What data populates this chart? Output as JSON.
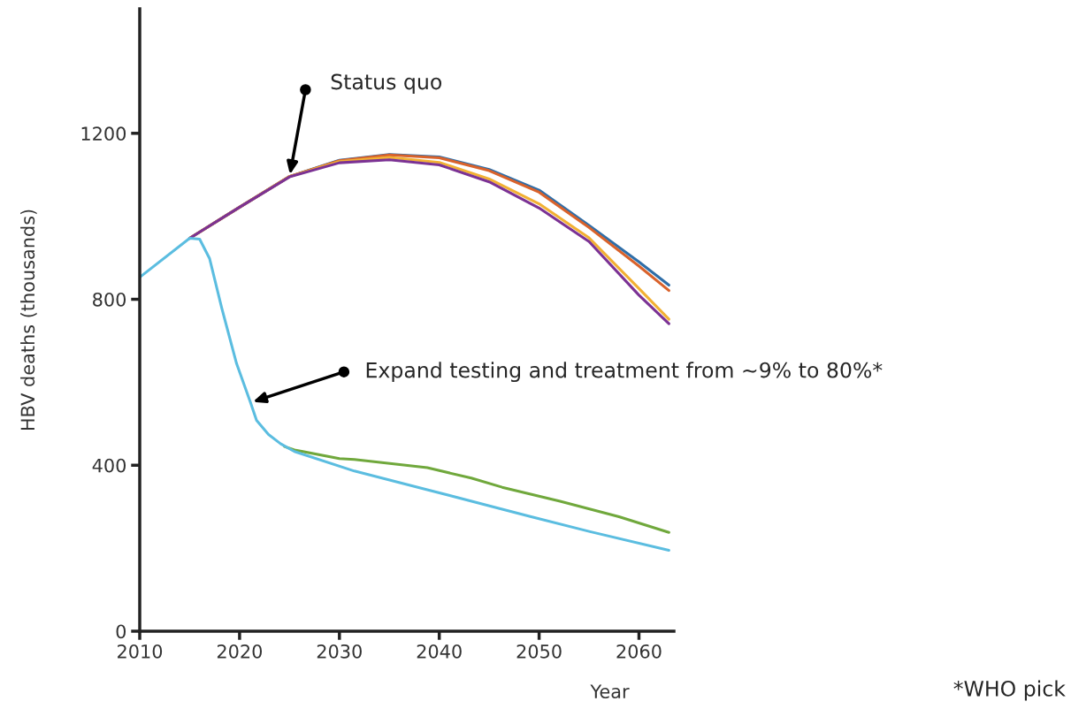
{
  "chart_data": {
    "type": "line",
    "xlabel": "Year",
    "ylabel": "HBV deaths (thousands)",
    "xlim": [
      2010,
      2063.5
    ],
    "xticks": [
      2010,
      2020,
      2030,
      2040,
      2050,
      2060
    ],
    "ylim": [
      0,
      1500
    ],
    "yticks": [
      0,
      400,
      800,
      1200
    ],
    "grid": false,
    "marker": "none",
    "line_style": "solid",
    "series": [
      {
        "color": "#2f6ea8",
        "x": [
          2015,
          2020,
          2025,
          2030,
          2035,
          2040,
          2045,
          2050,
          2055,
          2060,
          2063
        ],
        "values": [
          947,
          1022,
          1096,
          1135,
          1149,
          1143,
          1113,
          1063,
          978,
          890,
          834
        ]
      },
      {
        "color": "#d9622b",
        "x": [
          2015,
          2020,
          2025,
          2030,
          2035,
          2040,
          2045,
          2050,
          2055,
          2060,
          2063
        ],
        "values": [
          947,
          1022,
          1096,
          1134,
          1148,
          1141,
          1110,
          1058,
          973,
          880,
          821
        ]
      },
      {
        "color": "#f2b134",
        "x": [
          2015,
          2020,
          2025,
          2030,
          2035,
          2040,
          2045,
          2050,
          2055,
          2060,
          2063
        ],
        "values": [
          947,
          1022,
          1096,
          1132,
          1142,
          1130,
          1090,
          1030,
          948,
          826,
          752
        ]
      },
      {
        "color": "#7b3294",
        "x": [
          2015,
          2020,
          2025,
          2030,
          2035,
          2040,
          2045,
          2050,
          2055,
          2060,
          2063
        ],
        "values": [
          947,
          1022,
          1095,
          1129,
          1136,
          1124,
          1083,
          1020,
          939,
          810,
          741
        ]
      },
      {
        "color": "#70a83c",
        "x": [
          2024.5,
          2025.5,
          2030,
          2031.5,
          2038.8,
          2043.2,
          2046.3,
          2052.1,
          2058,
          2063
        ],
        "values": [
          445,
          437,
          416,
          414,
          394,
          369,
          347,
          313,
          276,
          238
        ]
      },
      {
        "color": "#5bbde0",
        "x": [
          2010,
          2015,
          2016,
          2017,
          2018.2,
          2019.7,
          2021.1,
          2021.7,
          2022.9,
          2024.1,
          2025.5,
          2031.5,
          2038.8,
          2046.3,
          2049.2,
          2055.1,
          2063
        ],
        "values": [
          853,
          947,
          945,
          898,
          780,
          645,
          551,
          508,
          474,
          452,
          433,
          386,
          341,
          294,
          276,
          240,
          195
        ]
      }
    ],
    "annotations": [
      {
        "text": "Status quo",
        "x": 2025,
        "y": 1095
      },
      {
        "text": "Expand testing and treatment from ~9% to 80%*",
        "x": 2021.1,
        "y": 551
      },
      "*WHO pick"
    ]
  }
}
